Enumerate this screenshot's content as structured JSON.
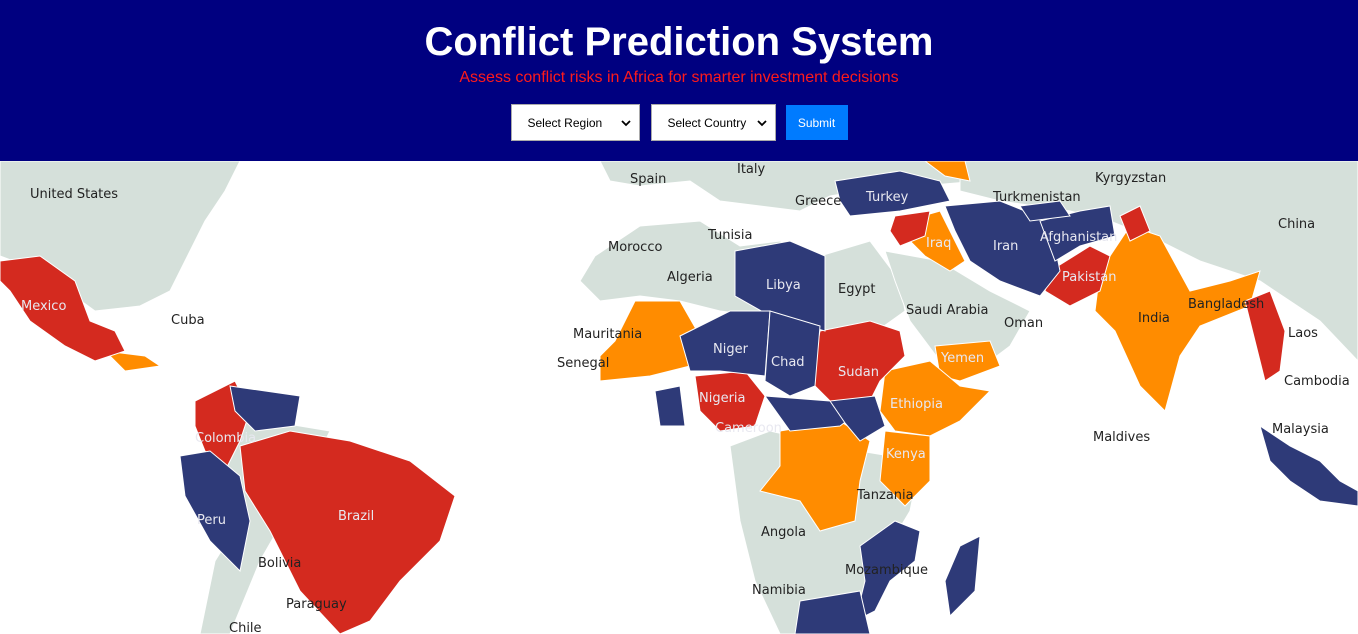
{
  "header": {
    "title": "Conflict Prediction System",
    "subtitle": "Assess conflict risks in Africa for smarter investment decisions"
  },
  "controls": {
    "region_select": {
      "selected": "Select Region"
    },
    "country_select": {
      "selected": "Select Country"
    },
    "submit_label": "Submit"
  },
  "colors": {
    "header_bg": "#000080",
    "subtitle": "#ff1a1a",
    "submit_bg": "#007bff",
    "high_risk": "#d42a1f",
    "medium_risk": "#ff8c00",
    "low_risk": "#2e3a78",
    "no_data": "#d5e0da"
  },
  "map": {
    "labels": {
      "united_states": "United States",
      "spain": "Spain",
      "italy": "Italy",
      "turkey": "Turkey",
      "turkmenistan": "Turkmenistan",
      "kyrgyzstan": "Kyrgyzstan",
      "greece": "Greece",
      "china": "China",
      "morocco": "Morocco",
      "tunisia": "Tunisia",
      "iraq": "Iraq",
      "iran": "Iran",
      "afghanistan": "Afghanistan",
      "algeria": "Algeria",
      "libya": "Libya",
      "egypt": "Egypt",
      "pakistan": "Pakistan",
      "mexico": "Mexico",
      "cuba": "Cuba",
      "saudi_arabia": "Saudi Arabia",
      "oman": "Oman",
      "india": "India",
      "bangladesh": "Bangladesh",
      "mauritania": "Mauritania",
      "laos": "Laos",
      "niger": "Niger",
      "chad": "Chad",
      "sudan": "Sudan",
      "yemen": "Yemen",
      "senegal": "Senegal",
      "cambodia": "Cambodia",
      "nigeria": "Nigeria",
      "ethiopia": "Ethiopia",
      "colombia": "Colombia",
      "cameroon": "Cameroon",
      "maldives": "Maldives",
      "malaysia": "Malaysia",
      "kenya": "Kenya",
      "tanzania": "Tanzania",
      "brazil": "Brazil",
      "peru": "Peru",
      "angola": "Angola",
      "bolivia": "Bolivia",
      "mozambique": "Mozambique",
      "namibia": "Namibia",
      "paraguay": "Paraguay",
      "chile": "Chile"
    }
  }
}
